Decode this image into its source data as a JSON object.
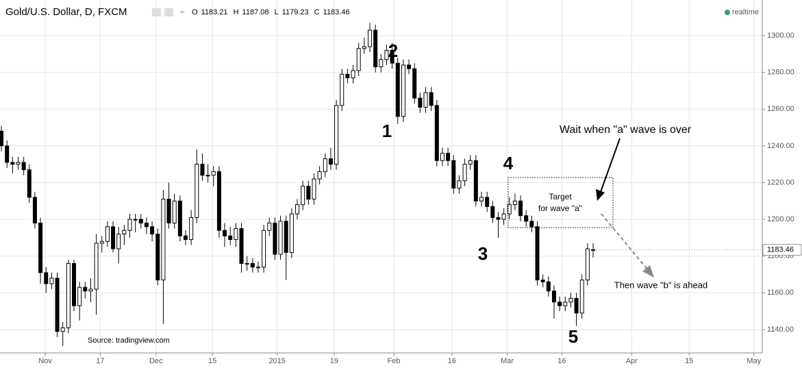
{
  "chart_data": {
    "type": "candlestick",
    "title": "Gold/U.S. Dollar, D, FXCM",
    "ohlc_labels": [
      "O",
      "H",
      "L",
      "C"
    ],
    "status": "realtime",
    "source": "Source: tradingview.com",
    "up_color": "#ffffff",
    "down_color": "#000000",
    "grid": true,
    "open": [
      1248,
      1240,
      1231,
      1230,
      1231,
      1227,
      1212,
      1198,
      1171,
      1165,
      1168,
      1139,
      1141,
      1176,
      1153,
      1163,
      1161,
      1162,
      1187,
      1188,
      1196,
      1184,
      1192,
      1194,
      1200,
      1200,
      1198,
      1196,
      1192,
      1167,
      1211,
      1198,
      1210,
      1191,
      1189,
      1201,
      1230,
      1224,
      1224,
      1226,
      1194,
      1191,
      1189,
      1195,
      1176,
      1176,
      1174,
      1174,
      1194,
      1198,
      1181,
      1199,
      1182,
      1203,
      1208,
      1218,
      1211,
      1222,
      1226,
      1233,
      1230,
      1262,
      1279,
      1277,
      1281,
      1293,
      1294,
      1303,
      1283,
      1287,
      1292,
      1285,
      1256,
      1284,
      1282,
      1266,
      1261,
      1269,
      1262,
      1232,
      1236,
      1232,
      1217,
      1221,
      1230,
      1232,
      1210,
      1212,
      1207,
      1201,
      1200,
      1203,
      1208,
      1210,
      1202,
      1199,
      1196,
      1167,
      1166,
      1161,
      1155,
      1153,
      1155,
      1157,
      1149,
      1167,
      1183.21
    ],
    "high": [
      1251,
      1243,
      1234,
      1234,
      1234,
      1230,
      1215,
      1201,
      1174,
      1171,
      1171,
      1144,
      1178,
      1178,
      1166,
      1166,
      1168,
      1192,
      1191,
      1199,
      1199,
      1196,
      1197,
      1203,
      1203,
      1203,
      1201,
      1199,
      1195,
      1216,
      1220,
      1214,
      1213,
      1194,
      1205,
      1238,
      1236,
      1230,
      1229,
      1229,
      1198,
      1196,
      1198,
      1198,
      1180,
      1179,
      1177,
      1197,
      1201,
      1201,
      1202,
      1202,
      1206,
      1211,
      1221,
      1221,
      1225,
      1229,
      1236,
      1239,
      1265,
      1282,
      1282,
      1284,
      1296,
      1299,
      1307,
      1306,
      1290,
      1295,
      1296,
      1288,
      1287,
      1287,
      1285,
      1269,
      1272,
      1272,
      1265,
      1239,
      1239,
      1235,
      1224,
      1233,
      1235,
      1235,
      1215,
      1215,
      1210,
      1204,
      1206,
      1212,
      1214,
      1213,
      1205,
      1202,
      1199,
      1170,
      1169,
      1164,
      1158,
      1158,
      1160,
      1160,
      1170,
      1187,
      1187.08
    ],
    "low": [
      1237,
      1228,
      1225,
      1227,
      1224,
      1209,
      1195,
      1165,
      1160,
      1162,
      1136,
      1131,
      1138,
      1150,
      1145,
      1157,
      1155,
      1148,
      1182,
      1185,
      1182,
      1176,
      1186,
      1190,
      1193,
      1195,
      1192,
      1188,
      1164,
      1143,
      1195,
      1195,
      1188,
      1186,
      1186,
      1198,
      1221,
      1220,
      1218,
      1190,
      1185,
      1186,
      1185,
      1171,
      1172,
      1171,
      1171,
      1171,
      1191,
      1178,
      1178,
      1167,
      1179,
      1200,
      1205,
      1208,
      1208,
      1219,
      1223,
      1227,
      1227,
      1259,
      1274,
      1274,
      1278,
      1290,
      1291,
      1280,
      1280,
      1284,
      1282,
      1252,
      1253,
      1279,
      1263,
      1258,
      1258,
      1259,
      1229,
      1229,
      1229,
      1214,
      1214,
      1218,
      1227,
      1207,
      1207,
      1204,
      1198,
      1190,
      1197,
      1200,
      1205,
      1199,
      1196,
      1193,
      1164,
      1163,
      1158,
      1146,
      1150,
      1150,
      1152,
      1142,
      1146,
      1164,
      1179.23
    ],
    "close": [
      1240,
      1231,
      1230,
      1231,
      1227,
      1212,
      1198,
      1171,
      1165,
      1168,
      1139,
      1141,
      1176,
      1153,
      1163,
      1161,
      1162,
      1187,
      1188,
      1196,
      1184,
      1192,
      1194,
      1200,
      1200,
      1198,
      1196,
      1192,
      1167,
      1211,
      1198,
      1210,
      1191,
      1189,
      1201,
      1230,
      1224,
      1224,
      1226,
      1194,
      1191,
      1189,
      1195,
      1176,
      1176,
      1174,
      1174,
      1194,
      1198,
      1181,
      1199,
      1182,
      1203,
      1208,
      1218,
      1211,
      1222,
      1226,
      1233,
      1230,
      1262,
      1279,
      1277,
      1281,
      1293,
      1294,
      1303,
      1283,
      1287,
      1292,
      1285,
      1256,
      1284,
      1282,
      1266,
      1261,
      1269,
      1262,
      1232,
      1236,
      1232,
      1217,
      1221,
      1230,
      1232,
      1210,
      1212,
      1207,
      1201,
      1200,
      1203,
      1208,
      1210,
      1202,
      1199,
      1196,
      1167,
      1166,
      1161,
      1155,
      1153,
      1155,
      1157,
      1149,
      1167,
      1184,
      1183.46
    ],
    "xlim": [
      -0.25,
      136.3
    ],
    "xticks": [
      {
        "value": 7.85,
        "label": "Nov"
      },
      {
        "value": 17.7,
        "label": "17"
      },
      {
        "value": 27.7,
        "label": "Dec"
      },
      {
        "value": 37.8,
        "label": "15"
      },
      {
        "value": 49.4,
        "label": "2015"
      },
      {
        "value": 59.6,
        "label": "19"
      },
      {
        "value": 70.3,
        "label": "Feb"
      },
      {
        "value": 80.7,
        "label": "16"
      },
      {
        "value": 90.6,
        "label": "Mar"
      },
      {
        "value": 100.4,
        "label": "16"
      },
      {
        "value": 112.9,
        "label": "Apr"
      },
      {
        "value": 123.2,
        "label": "15"
      },
      {
        "value": 134.8,
        "label": "May"
      }
    ],
    "ylim": [
      1127.3,
      1319.4
    ],
    "yticks": [
      {
        "value": 1140,
        "label": "1140.00"
      },
      {
        "value": 1160,
        "label": "1160.00"
      },
      {
        "value": 1180,
        "label": "1180.00"
      },
      {
        "value": 1200,
        "label": "1200.00"
      },
      {
        "value": 1220,
        "label": "1220.00"
      },
      {
        "value": 1240,
        "label": "1240.00"
      },
      {
        "value": 1260,
        "label": "1260.00"
      },
      {
        "value": 1280,
        "label": "1280.00"
      },
      {
        "value": 1300,
        "label": "1300.00"
      }
    ],
    "annotations": [
      "2",
      "1",
      "4",
      "3",
      "5",
      "Wait when \"a\" wave is over",
      "Target",
      "for wave \"a\"",
      "Then wave \"b\" is ahead"
    ]
  }
}
